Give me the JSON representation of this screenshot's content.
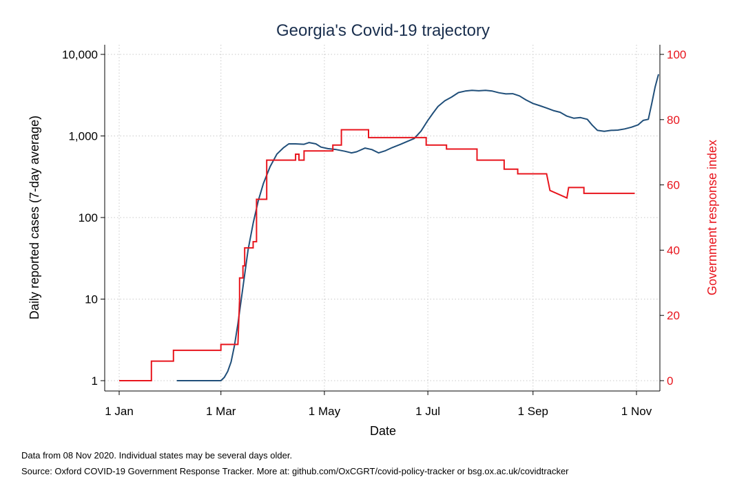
{
  "chart_data": {
    "type": "line",
    "title": "Georgia's Covid-19 trajectory",
    "xlabel": "Date",
    "ylabel_left": "Daily reported cases (7-day average)",
    "ylabel_right": "Government response index",
    "x_range": [
      "2020-01-01",
      "2020-11-08"
    ],
    "x_ticks": [
      {
        "date": "2020-01-01",
        "label": "1 Jan"
      },
      {
        "date": "2020-03-01",
        "label": "1 Mar"
      },
      {
        "date": "2020-05-01",
        "label": "1 May"
      },
      {
        "date": "2020-07-01",
        "label": "1 Jul"
      },
      {
        "date": "2020-09-01",
        "label": "1 Sep"
      },
      {
        "date": "2020-11-01",
        "label": "1 Nov"
      }
    ],
    "y_left": {
      "scale": "log",
      "ylim": [
        1,
        10000
      ],
      "ticks": [
        {
          "value": 1,
          "label": "1"
        },
        {
          "value": 10,
          "label": "10"
        },
        {
          "value": 100,
          "label": "100"
        },
        {
          "value": 1000,
          "label": "1,000"
        },
        {
          "value": 10000,
          "label": "10,000"
        }
      ]
    },
    "y_right": {
      "scale": "linear",
      "ylim": [
        0,
        100
      ],
      "ticks": [
        {
          "value": 0,
          "label": "0"
        },
        {
          "value": 20,
          "label": "20"
        },
        {
          "value": 40,
          "label": "40"
        },
        {
          "value": 60,
          "label": "60"
        },
        {
          "value": 80,
          "label": "80"
        },
        {
          "value": 100,
          "label": "100"
        }
      ]
    },
    "grid": true,
    "colors": {
      "cases": "#1f4e79",
      "index": "#e8141c",
      "grid": "#c8c8c8"
    },
    "series": [
      {
        "axis": "left",
        "color": "#1f4e79",
        "points": [
          [
            "2020-02-04",
            1
          ],
          [
            "2020-03-01",
            1
          ],
          [
            "2020-03-03",
            1.1
          ],
          [
            "2020-03-05",
            1.3
          ],
          [
            "2020-03-07",
            1.7
          ],
          [
            "2020-03-09",
            2.7
          ],
          [
            "2020-03-11",
            5
          ],
          [
            "2020-03-13",
            10
          ],
          [
            "2020-03-15",
            20
          ],
          [
            "2020-03-17",
            40
          ],
          [
            "2020-03-20",
            85
          ],
          [
            "2020-03-23",
            160
          ],
          [
            "2020-03-26",
            260
          ],
          [
            "2020-03-30",
            420
          ],
          [
            "2020-04-03",
            600
          ],
          [
            "2020-04-07",
            720
          ],
          [
            "2020-04-10",
            800
          ],
          [
            "2020-04-14",
            800
          ],
          [
            "2020-04-19",
            790
          ],
          [
            "2020-04-22",
            830
          ],
          [
            "2020-04-26",
            800
          ],
          [
            "2020-04-29",
            730
          ],
          [
            "2020-05-03",
            700
          ],
          [
            "2020-05-08",
            680
          ],
          [
            "2020-05-13",
            650
          ],
          [
            "2020-05-17",
            620
          ],
          [
            "2020-05-20",
            640
          ],
          [
            "2020-05-25",
            710
          ],
          [
            "2020-05-29",
            680
          ],
          [
            "2020-06-02",
            620
          ],
          [
            "2020-06-06",
            660
          ],
          [
            "2020-06-10",
            720
          ],
          [
            "2020-06-15",
            790
          ],
          [
            "2020-06-19",
            860
          ],
          [
            "2020-06-23",
            930
          ],
          [
            "2020-06-27",
            1150
          ],
          [
            "2020-07-01",
            1550
          ],
          [
            "2020-07-04",
            1900
          ],
          [
            "2020-07-07",
            2300
          ],
          [
            "2020-07-11",
            2700
          ],
          [
            "2020-07-15",
            3000
          ],
          [
            "2020-07-19",
            3400
          ],
          [
            "2020-07-23",
            3550
          ],
          [
            "2020-07-27",
            3620
          ],
          [
            "2020-07-31",
            3580
          ],
          [
            "2020-08-04",
            3620
          ],
          [
            "2020-08-08",
            3550
          ],
          [
            "2020-08-12",
            3380
          ],
          [
            "2020-08-16",
            3280
          ],
          [
            "2020-08-20",
            3300
          ],
          [
            "2020-08-24",
            3100
          ],
          [
            "2020-08-28",
            2750
          ],
          [
            "2020-09-01",
            2500
          ],
          [
            "2020-09-05",
            2350
          ],
          [
            "2020-09-09",
            2200
          ],
          [
            "2020-09-13",
            2050
          ],
          [
            "2020-09-17",
            1950
          ],
          [
            "2020-09-21",
            1750
          ],
          [
            "2020-09-25",
            1650
          ],
          [
            "2020-09-29",
            1680
          ],
          [
            "2020-10-03",
            1600
          ],
          [
            "2020-10-06",
            1350
          ],
          [
            "2020-10-09",
            1170
          ],
          [
            "2020-10-13",
            1140
          ],
          [
            "2020-10-17",
            1170
          ],
          [
            "2020-10-21",
            1180
          ],
          [
            "2020-10-25",
            1220
          ],
          [
            "2020-10-29",
            1280
          ],
          [
            "2020-11-02",
            1370
          ],
          [
            "2020-11-05",
            1550
          ],
          [
            "2020-11-08",
            1600
          ],
          [
            "2020-11-10",
            2500
          ],
          [
            "2020-11-12",
            4000
          ],
          [
            "2020-11-14",
            5700
          ]
        ]
      },
      {
        "axis": "right",
        "color": "#e8141c",
        "points": [
          [
            "2020-01-01",
            0
          ],
          [
            "2020-01-20",
            0
          ],
          [
            "2020-01-20",
            6
          ],
          [
            "2020-02-02",
            6
          ],
          [
            "2020-02-02",
            9.3
          ],
          [
            "2020-03-01",
            9.3
          ],
          [
            "2020-03-01",
            11.1
          ],
          [
            "2020-03-11",
            11.1
          ],
          [
            "2020-03-12",
            25
          ],
          [
            "2020-03-12",
            31.5
          ],
          [
            "2020-03-14",
            31.5
          ],
          [
            "2020-03-14",
            35.2
          ],
          [
            "2020-03-15",
            35.2
          ],
          [
            "2020-03-15",
            40.7
          ],
          [
            "2020-03-20",
            40.7
          ],
          [
            "2020-03-20",
            42.6
          ],
          [
            "2020-03-22",
            42.6
          ],
          [
            "2020-03-22",
            55.6
          ],
          [
            "2020-03-28",
            55.6
          ],
          [
            "2020-03-28",
            67.6
          ],
          [
            "2020-04-14",
            67.6
          ],
          [
            "2020-04-14",
            69.4
          ],
          [
            "2020-04-16",
            69.4
          ],
          [
            "2020-04-16",
            67.6
          ],
          [
            "2020-04-19",
            67.6
          ],
          [
            "2020-04-19",
            70.4
          ],
          [
            "2020-04-29",
            70.4
          ],
          [
            "2020-04-29",
            70.4
          ],
          [
            "2020-05-06",
            70.4
          ],
          [
            "2020-05-06",
            72.2
          ],
          [
            "2020-05-11",
            72.2
          ],
          [
            "2020-05-11",
            76.9
          ],
          [
            "2020-05-27",
            76.9
          ],
          [
            "2020-05-27",
            74.5
          ],
          [
            "2020-06-30",
            74.5
          ],
          [
            "2020-06-30",
            72.2
          ],
          [
            "2020-07-12",
            72.2
          ],
          [
            "2020-07-12",
            71.0
          ],
          [
            "2020-07-30",
            71.0
          ],
          [
            "2020-07-30",
            67.6
          ],
          [
            "2020-08-15",
            67.6
          ],
          [
            "2020-08-15",
            64.8
          ],
          [
            "2020-08-23",
            64.8
          ],
          [
            "2020-08-23",
            63.4
          ],
          [
            "2020-09-09",
            63.4
          ],
          [
            "2020-09-11",
            58.3
          ],
          [
            "2020-09-21",
            56.0
          ],
          [
            "2020-09-22",
            59.2
          ],
          [
            "2020-10-01",
            59.2
          ],
          [
            "2020-10-01",
            57.4
          ],
          [
            "2020-10-31",
            57.4
          ]
        ]
      }
    ]
  },
  "footnotes": {
    "line1": "Data from 08 Nov 2020. Individual states may be several days older.",
    "line2": "Source: Oxford COVID-19 Government Response Tracker. More at: github.com/OxCGRT/covid-policy-tracker or bsg.ox.ac.uk/covidtracker"
  }
}
